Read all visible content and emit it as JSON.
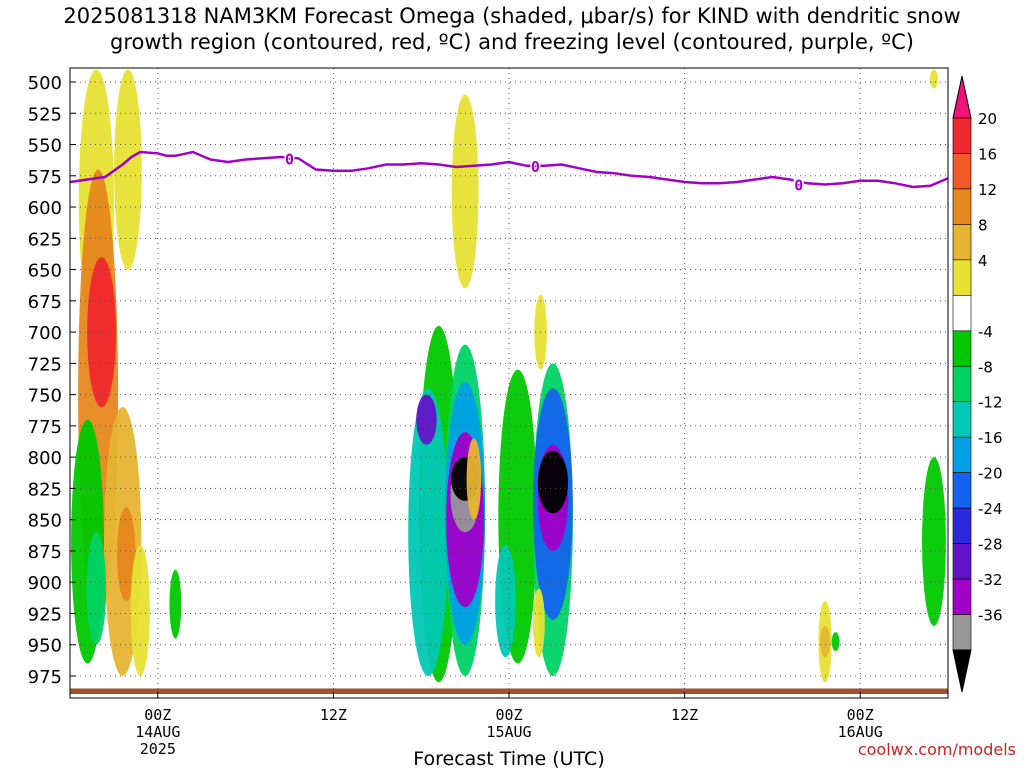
{
  "title_line1": "2025081318 NAM3KM Forecast Omega (shaded, μbar/s) for KIND with dendritic snow",
  "title_line2": "growth region (contoured, red, ºC) and freezing level (contoured, purple, ºC)",
  "credit": "coolwx.com/models",
  "chart_data": {
    "type": "heatmap",
    "title": "2025081318 NAM3KM Forecast Omega (shaded, μbar/s) for KIND with dendritic snow growth region (contoured, red, ºC) and freezing level (contoured, purple, ºC)",
    "xlabel": "Forecast Time (UTC)",
    "ylabel": "",
    "x_unit": "hours from 2025-08-13 18Z",
    "xlim": [
      -5,
      45
    ],
    "ylim": [
      990,
      490
    ],
    "y_scale": "pressure",
    "grid": true,
    "x_ticks": [
      {
        "x": 0,
        "label": "00Z",
        "sub1": "14AUG",
        "sub2": "2025"
      },
      {
        "x": 10,
        "label": "12Z",
        "sub1": "",
        "sub2": ""
      },
      {
        "x": 20,
        "label": "00Z",
        "sub1": "15AUG",
        "sub2": ""
      },
      {
        "x": 30,
        "label": "12Z",
        "sub1": "",
        "sub2": ""
      },
      {
        "x": 40,
        "label": "00Z",
        "sub1": "16AUG",
        "sub2": ""
      }
    ],
    "y_ticks": [
      500,
      525,
      550,
      575,
      600,
      625,
      650,
      675,
      700,
      725,
      750,
      775,
      800,
      825,
      850,
      875,
      900,
      925,
      950,
      975
    ],
    "colorbar": {
      "unit": "μbar/s",
      "labels": [
        "20",
        "16",
        "12",
        "8",
        "4",
        "-4",
        "-8",
        "-12",
        "-16",
        "-20",
        "-24",
        "-28",
        "-32",
        "-36"
      ],
      "colors": [
        "#f0147a",
        "#f0282d",
        "#f05a28",
        "#e6871e",
        "#e6b432",
        "#e6e132",
        "#ffffff",
        "#00c800",
        "#00d264",
        "#00c8b4",
        "#00a0e6",
        "#1464f0",
        "#2d28dc",
        "#6414c8",
        "#a000c8",
        "#969696",
        "#000000"
      ]
    },
    "freezing_level": {
      "label": "0",
      "color": "#a000c8",
      "x": [
        -5,
        -4.0,
        -3.0,
        -2.0,
        -1.5,
        -1.0,
        0,
        0.5,
        1.0,
        2.0,
        3.0,
        4.0,
        5.0,
        6.0,
        7.0,
        8.0,
        9.0,
        10.0,
        11.0,
        12.0,
        13.0,
        14.0,
        15.0,
        16.0,
        17.0,
        18.0,
        19.0,
        20.0,
        21.0,
        22.0,
        23.0,
        24.0,
        25.0,
        26.0,
        27.0,
        28.0,
        29.0,
        30.0,
        31.0,
        32.0,
        33.0,
        34.0,
        35.0,
        36.0,
        37.0,
        38.0,
        39.0,
        40.0,
        41.0,
        42.0,
        43.0,
        44.0,
        45.0
      ],
      "p": [
        580,
        578,
        576,
        566,
        560,
        556,
        557,
        559,
        559,
        556,
        562,
        564,
        562,
        561,
        560,
        561,
        570,
        571,
        571,
        569,
        566,
        566,
        565,
        566,
        568,
        567,
        566,
        564,
        567,
        567,
        566,
        569,
        572,
        573,
        575,
        576,
        578,
        580,
        581,
        581,
        580,
        578,
        576,
        578,
        581,
        582,
        581,
        579,
        579,
        581,
        584,
        583,
        577
      ]
    },
    "freezing_level_labels": [
      {
        "x": 7.5,
        "p": 561
      },
      {
        "x": 21.5,
        "p": 567
      },
      {
        "x": 36.5,
        "p": 582
      }
    ],
    "omega_features": [
      {
        "x": -3.5,
        "p_top": 490,
        "p_bot": 700,
        "value": 6
      },
      {
        "x": -1.7,
        "p_top": 490,
        "p_bot": 650,
        "value": 6
      },
      {
        "x": -3.4,
        "p_top": 570,
        "p_bot": 930,
        "value": 14
      },
      {
        "x": -3.2,
        "p_top": 640,
        "p_bot": 760,
        "value": 18
      },
      {
        "x": -2.0,
        "p_top": 760,
        "p_bot": 975,
        "value": 8
      },
      {
        "x": -1.8,
        "p_top": 840,
        "p_bot": 915,
        "value": 12
      },
      {
        "x": -1.0,
        "p_top": 870,
        "p_bot": 975,
        "value": 6
      },
      {
        "x": -4.0,
        "p_top": 770,
        "p_bot": 965,
        "value": -6
      },
      {
        "x": -3.5,
        "p_top": 860,
        "p_bot": 950,
        "value": -10
      },
      {
        "x": 1.0,
        "p_top": 890,
        "p_bot": 945,
        "value": -6
      },
      {
        "x": 17.5,
        "p_top": 510,
        "p_bot": 665,
        "value": 6
      },
      {
        "x": 21.8,
        "p_top": 670,
        "p_bot": 730,
        "value": 6
      },
      {
        "x": 16.0,
        "p_top": 695,
        "p_bot": 980,
        "value": -6
      },
      {
        "x": 15.4,
        "p_top": 745,
        "p_bot": 975,
        "value": -12
      },
      {
        "x": 15.3,
        "p_top": 750,
        "p_bot": 790,
        "value": -24
      },
      {
        "x": 17.5,
        "p_top": 710,
        "p_bot": 975,
        "value": -10
      },
      {
        "x": 17.5,
        "p_top": 740,
        "p_bot": 950,
        "value": -18
      },
      {
        "x": 17.5,
        "p_top": 780,
        "p_bot": 920,
        "value": -28
      },
      {
        "x": 17.5,
        "p_top": 800,
        "p_bot": 860,
        "value": -34
      },
      {
        "x": 17.5,
        "p_top": 800,
        "p_bot": 835,
        "value": -38
      },
      {
        "x": 18.0,
        "p_top": 785,
        "p_bot": 850,
        "value": 8
      },
      {
        "x": 20.5,
        "p_top": 730,
        "p_bot": 965,
        "value": -6
      },
      {
        "x": 19.8,
        "p_top": 870,
        "p_bot": 960,
        "value": -12
      },
      {
        "x": 22.5,
        "p_top": 725,
        "p_bot": 975,
        "value": -10
      },
      {
        "x": 22.5,
        "p_top": 745,
        "p_bot": 930,
        "value": -20
      },
      {
        "x": 22.5,
        "p_top": 790,
        "p_bot": 875,
        "value": -30
      },
      {
        "x": 22.5,
        "p_top": 795,
        "p_bot": 845,
        "value": -38
      },
      {
        "x": 21.7,
        "p_top": 905,
        "p_bot": 960,
        "value": 6
      },
      {
        "x": 38.0,
        "p_top": 915,
        "p_bot": 980,
        "value": 6
      },
      {
        "x": 38.0,
        "p_top": 935,
        "p_bot": 960,
        "value": 10
      },
      {
        "x": 38.6,
        "p_top": 940,
        "p_bot": 955,
        "value": -6
      },
      {
        "x": 44.2,
        "p_top": 800,
        "p_bot": 935,
        "value": -6
      },
      {
        "x": 44.2,
        "p_top": 490,
        "p_bot": 505,
        "value": 6
      }
    ],
    "surface": {
      "color": "#a0522d",
      "p_top": 985
    }
  }
}
